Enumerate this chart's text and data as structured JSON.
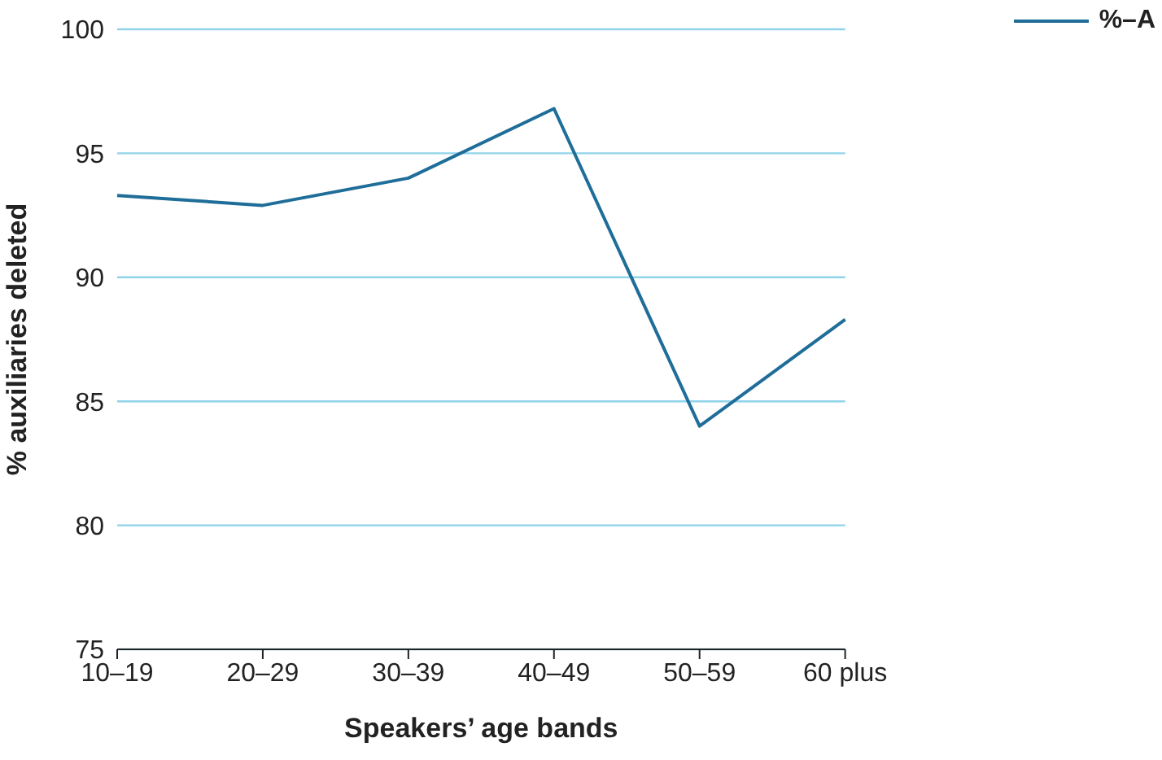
{
  "chart_data": {
    "type": "line",
    "xlabel": "Speakers’ age bands",
    "ylabel": "% auxiliaries deleted",
    "categories": [
      "10–19",
      "20–29",
      "30–39",
      "40–49",
      "50–59",
      "60 plus"
    ],
    "series": [
      {
        "name": "%–A",
        "color": "#1f6d99",
        "values": [
          93.3,
          92.9,
          94.0,
          96.8,
          84.0,
          88.3
        ]
      }
    ],
    "ylim": [
      75,
      100
    ],
    "yticks": [
      75,
      80,
      85,
      90,
      95,
      100
    ],
    "grid": "y",
    "legend": "top right",
    "marker": "none",
    "line_style": "solid"
  }
}
